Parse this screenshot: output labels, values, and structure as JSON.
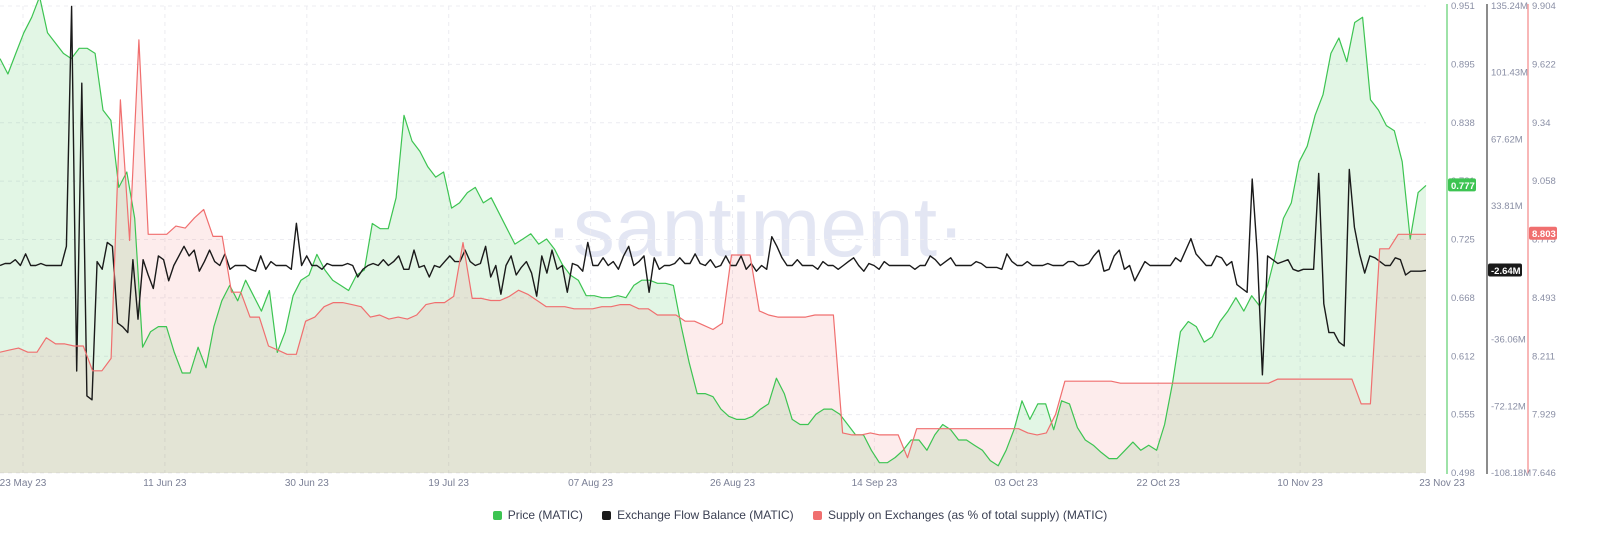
{
  "chart_data": {
    "type": "line",
    "watermark": "·santiment·",
    "x_ticks": [
      "23 May 23",
      "11 Jun 23",
      "30 Jun 23",
      "19 Jul 23",
      "07 Aug 23",
      "26 Aug 23",
      "14 Sep 23",
      "03 Oct 23",
      "22 Oct 23",
      "10 Nov 23",
      "23 Nov 23"
    ],
    "x_range": [
      "2023-05-23",
      "2023-11-23"
    ],
    "axes": {
      "price": {
        "ticks": [
          "0.951",
          "0.895",
          "0.838",
          "0.781",
          "0.725",
          "0.668",
          "0.612",
          "0.555",
          "0.498"
        ],
        "range": [
          0.498,
          0.951
        ],
        "color": "#3dc452",
        "current_label": "0.777"
      },
      "flow": {
        "ticks": [
          "135.24M",
          "101.43M",
          "67.62M",
          "33.81M",
          "0",
          "-36.06M",
          "-72.12M",
          "-108.18M"
        ],
        "range": [
          -108.18,
          135.24
        ],
        "color": "#1a1a1a",
        "current_label": "-2.64M"
      },
      "supply": {
        "ticks": [
          "9.904",
          "9.622",
          "9.34",
          "9.058",
          "8.775",
          "8.493",
          "8.211",
          "7.929",
          "7.646"
        ],
        "range": [
          7.646,
          9.904
        ],
        "color": "#f06f6f",
        "current_label": "8.803"
      }
    },
    "series": [
      {
        "name": "Price (MATIC)",
        "axis": "price",
        "color": "#3dc452",
        "values": [
          0.9,
          0.885,
          0.905,
          0.925,
          0.94,
          0.96,
          0.925,
          0.915,
          0.905,
          0.9,
          0.91,
          0.91,
          0.905,
          0.85,
          0.84,
          0.775,
          0.79,
          0.745,
          0.62,
          0.635,
          0.64,
          0.64,
          0.615,
          0.595,
          0.595,
          0.62,
          0.6,
          0.64,
          0.665,
          0.68,
          0.665,
          0.685,
          0.67,
          0.655,
          0.675,
          0.615,
          0.635,
          0.67,
          0.685,
          0.69,
          0.71,
          0.695,
          0.685,
          0.68,
          0.675,
          0.69,
          0.695,
          0.74,
          0.735,
          0.735,
          0.765,
          0.845,
          0.82,
          0.81,
          0.795,
          0.785,
          0.79,
          0.755,
          0.76,
          0.77,
          0.775,
          0.76,
          0.765,
          0.75,
          0.735,
          0.72,
          0.725,
          0.73,
          0.72,
          0.725,
          0.715,
          0.7,
          0.69,
          0.685,
          0.67,
          0.67,
          0.668,
          0.668,
          0.67,
          0.668,
          0.68,
          0.685,
          0.685,
          0.682,
          0.682,
          0.68,
          0.64,
          0.605,
          0.575,
          0.575,
          0.572,
          0.56,
          0.553,
          0.55,
          0.55,
          0.553,
          0.56,
          0.565,
          0.59,
          0.575,
          0.55,
          0.545,
          0.545,
          0.555,
          0.56,
          0.56,
          0.555,
          0.545,
          0.535,
          0.535,
          0.52,
          0.508,
          0.508,
          0.513,
          0.52,
          0.53,
          0.53,
          0.52,
          0.535,
          0.545,
          0.54,
          0.53,
          0.53,
          0.525,
          0.52,
          0.51,
          0.505,
          0.52,
          0.54,
          0.568,
          0.55,
          0.565,
          0.565,
          0.54,
          0.568,
          0.565,
          0.542,
          0.53,
          0.525,
          0.518,
          0.512,
          0.512,
          0.52,
          0.528,
          0.52,
          0.525,
          0.52,
          0.545,
          0.585,
          0.635,
          0.645,
          0.64,
          0.625,
          0.63,
          0.645,
          0.655,
          0.668,
          0.655,
          0.67,
          0.66,
          0.68,
          0.71,
          0.745,
          0.76,
          0.8,
          0.815,
          0.845,
          0.865,
          0.905,
          0.92,
          0.897,
          0.935,
          0.94,
          0.86,
          0.85,
          0.835,
          0.83,
          0.8,
          0.725,
          0.77,
          0.777
        ],
        "current": 0.777
      },
      {
        "name": "Exchange Flow Balance (MATIC)",
        "axis": "flow",
        "color": "#1a1a1a",
        "values": [
          0,
          1,
          1,
          3,
          0,
          6,
          0,
          0,
          1,
          0,
          0,
          0,
          0,
          10,
          135,
          -55,
          95,
          -68,
          -70,
          2,
          -2,
          12,
          10,
          -30,
          -32,
          -35,
          3,
          -28,
          3,
          -5,
          -12,
          5,
          3,
          -8,
          0,
          5,
          10,
          5,
          8,
          -3,
          2,
          8,
          2,
          0,
          6,
          -2,
          0,
          0,
          0,
          -2,
          -3,
          5,
          -2,
          2,
          0,
          0,
          0,
          -2,
          22,
          0,
          5,
          0,
          0,
          -2,
          1,
          0,
          0,
          0,
          1,
          0,
          -6,
          -2,
          0,
          1,
          0,
          3,
          0,
          2,
          5,
          -2,
          -2,
          8,
          -1,
          0,
          -6,
          0,
          -1,
          2,
          5,
          2,
          2,
          8,
          2,
          0,
          1,
          10,
          -6,
          0,
          -15,
          0,
          5,
          -5,
          -1,
          2,
          -4,
          -16,
          5,
          -4,
          8,
          -2,
          0,
          -14,
          1,
          0,
          -3,
          12,
          0,
          0,
          4,
          0,
          2,
          -2,
          5,
          10,
          0,
          2,
          5,
          -14,
          4,
          -2,
          0,
          0,
          1,
          4,
          1,
          1,
          6,
          1,
          0,
          3,
          -1,
          0,
          5,
          0,
          0,
          5,
          -2,
          1,
          -3,
          0,
          -2,
          15,
          10,
          4,
          0,
          0,
          3,
          0,
          0,
          0,
          -2,
          2,
          0,
          0,
          -2,
          0,
          2,
          4,
          0,
          -3,
          1,
          0,
          -2,
          2,
          0,
          0,
          0,
          0,
          0,
          -2,
          0,
          0,
          5,
          3,
          0,
          2,
          4,
          0,
          0,
          0,
          0,
          2,
          1,
          -1,
          -1,
          -1,
          -2,
          6,
          2,
          0,
          0,
          2,
          0,
          0,
          0,
          1,
          0,
          0,
          0,
          2,
          2,
          0,
          0,
          1,
          5,
          8,
          -3,
          -2,
          5,
          8,
          -2,
          0,
          -8,
          -3,
          2,
          0,
          0,
          0,
          0,
          0,
          4,
          2,
          8,
          14,
          6,
          3,
          0,
          0,
          5,
          4,
          0,
          2,
          -10,
          -12,
          -14,
          45,
          6,
          -57,
          5,
          3,
          1,
          2,
          3,
          -2,
          -3,
          -2,
          -2,
          -2,
          48,
          -20,
          -35,
          -35,
          -40,
          -42,
          50,
          20,
          6,
          -4,
          5,
          4,
          2,
          0,
          0,
          4,
          3,
          -5,
          -3,
          -3,
          -3,
          -2.64
        ],
        "current": -2.64
      },
      {
        "name": "Supply on Exchanges (as % of total supply) (MATIC)",
        "axis": "supply",
        "color": "#f06f6f",
        "values": [
          8.23,
          8.24,
          8.25,
          8.23,
          8.23,
          8.3,
          8.27,
          8.27,
          8.26,
          8.26,
          8.14,
          8.14,
          8.2,
          9.45,
          8.77,
          9.74,
          8.8,
          8.8,
          8.8,
          8.84,
          8.83,
          8.88,
          8.92,
          8.79,
          8.79,
          8.52,
          8.52,
          8.4,
          8.4,
          8.26,
          8.24,
          8.22,
          8.22,
          8.38,
          8.4,
          8.45,
          8.47,
          8.47,
          8.46,
          8.45,
          8.4,
          8.41,
          8.39,
          8.4,
          8.39,
          8.41,
          8.46,
          8.47,
          8.47,
          8.5,
          8.76,
          8.49,
          8.49,
          8.48,
          8.48,
          8.5,
          8.53,
          8.51,
          8.48,
          8.45,
          8.45,
          8.45,
          8.44,
          8.44,
          8.44,
          8.45,
          8.45,
          8.46,
          8.46,
          8.44,
          8.44,
          8.41,
          8.41,
          8.41,
          8.38,
          8.38,
          8.36,
          8.34,
          8.37,
          8.7,
          8.7,
          8.7,
          8.43,
          8.41,
          8.4,
          8.4,
          8.4,
          8.4,
          8.41,
          8.41,
          8.41,
          7.84,
          7.83,
          7.83,
          7.84,
          7.83,
          7.83,
          7.83,
          7.72,
          7.86,
          7.86,
          7.86,
          7.86,
          7.86,
          7.86,
          7.86,
          7.86,
          7.86,
          7.86,
          7.86,
          7.86,
          7.84,
          7.83,
          7.84,
          7.93,
          8.09,
          8.09,
          8.09,
          8.09,
          8.09,
          8.09,
          8.08,
          8.08,
          8.08,
          8.08,
          8.08,
          8.08,
          8.08,
          8.08,
          8.08,
          8.08,
          8.08,
          8.08,
          8.08,
          8.08,
          8.08,
          8.08,
          8.08,
          8.1,
          8.1,
          8.1,
          8.1,
          8.1,
          8.1,
          8.1,
          8.1,
          8.1,
          7.98,
          7.98,
          8.73,
          8.73,
          8.8,
          8.8,
          8.8,
          8.8
        ],
        "current": 8.803
      }
    ],
    "legend": {
      "placement": "bottom-center",
      "items": [
        "Price (MATIC)",
        "Exchange Flow Balance (MATIC)",
        "Supply on Exchanges (as % of total supply) (MATIC)"
      ]
    },
    "grid": true
  }
}
